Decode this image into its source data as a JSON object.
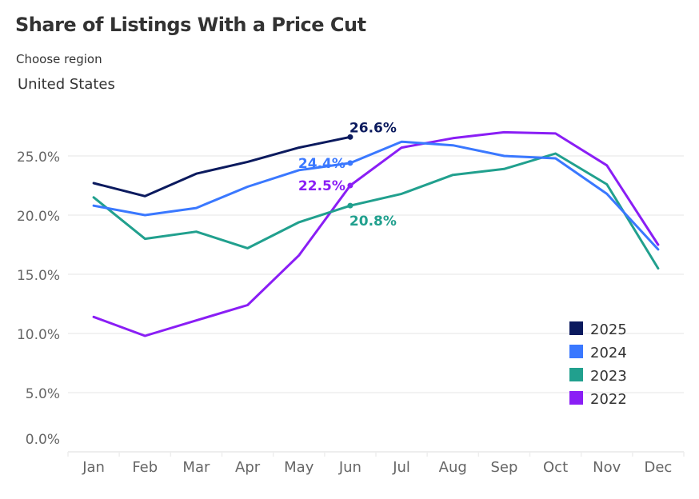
{
  "header": {
    "title": "Share of Listings With a Price Cut",
    "region_label": "Choose region",
    "region_value": "United States"
  },
  "chart_data": {
    "type": "line",
    "title": "Share of Listings With a Price Cut",
    "xlabel": "",
    "ylabel": "",
    "categories": [
      "Jan",
      "Feb",
      "Mar",
      "Apr",
      "May",
      "Jun",
      "Jul",
      "Aug",
      "Sep",
      "Oct",
      "Nov",
      "Dec"
    ],
    "yticks": [
      0,
      5,
      10,
      15,
      20,
      25
    ],
    "ytick_labels": [
      "0.0%",
      "5.0%",
      "10.0%",
      "15.0%",
      "20.0%",
      "25.0%"
    ],
    "ylim": [
      0,
      28
    ],
    "grid": true,
    "legend_position": "bottom-right",
    "series": [
      {
        "name": "2025",
        "color": "#0b1a5e",
        "values": [
          22.7,
          21.6,
          23.5,
          24.5,
          25.7,
          26.6,
          null,
          null,
          null,
          null,
          null,
          null
        ],
        "label": {
          "month_index": 5,
          "text": "26.6%",
          "position": "right-above"
        }
      },
      {
        "name": "2024",
        "color": "#3a78ff",
        "values": [
          20.8,
          20.0,
          20.6,
          22.4,
          23.8,
          24.4,
          26.2,
          25.9,
          25.0,
          24.8,
          21.8,
          17.1
        ],
        "label": {
          "month_index": 5,
          "text": "24.4%",
          "position": "left"
        }
      },
      {
        "name": "2023",
        "color": "#21a08e",
        "values": [
          21.5,
          18.0,
          18.6,
          17.2,
          19.4,
          20.8,
          21.8,
          23.4,
          23.9,
          25.2,
          22.6,
          15.5
        ],
        "label": {
          "month_index": 5,
          "text": "20.8%",
          "position": "right-below"
        }
      },
      {
        "name": "2022",
        "color": "#8a1ef5",
        "values": [
          11.4,
          9.8,
          11.1,
          12.4,
          16.6,
          22.5,
          25.7,
          26.5,
          27.0,
          26.9,
          24.2,
          17.5
        ],
        "label": {
          "month_index": 5,
          "text": "22.5%",
          "position": "left"
        }
      }
    ],
    "legend": [
      "2025",
      "2024",
      "2023",
      "2022"
    ]
  }
}
